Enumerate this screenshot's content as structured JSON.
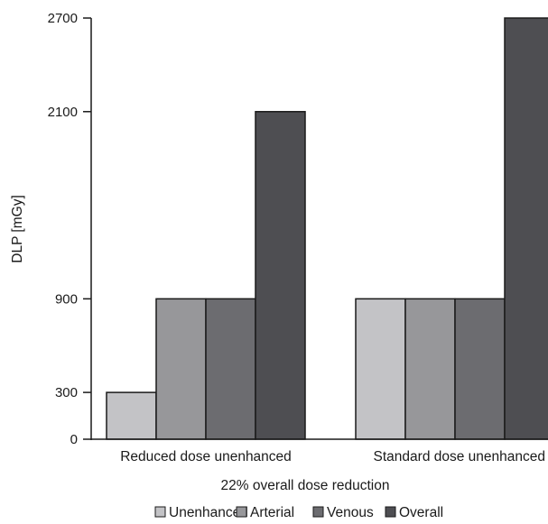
{
  "chart_data": {
    "type": "bar",
    "title": "",
    "xlabel": "22% overall dose reduction",
    "ylabel": "DLP [mGy]",
    "yticks": [
      0,
      300,
      900,
      2100,
      2700
    ],
    "ylim": [
      0,
      2700
    ],
    "categories": [
      "Reduced dose unenhanced",
      "Standard dose unenhanced"
    ],
    "series": [
      {
        "name": "Unenhanced",
        "color": "#c3c3c6",
        "values": [
          300,
          900
        ]
      },
      {
        "name": "Arterial",
        "color": "#97979a",
        "values": [
          900,
          900
        ]
      },
      {
        "name": "Venous",
        "color": "#6c6c70",
        "values": [
          900,
          900
        ]
      },
      {
        "name": "Overall",
        "color": "#4e4e52",
        "values": [
          2100,
          2700
        ]
      }
    ],
    "legend_position": "bottom",
    "grid": false
  }
}
